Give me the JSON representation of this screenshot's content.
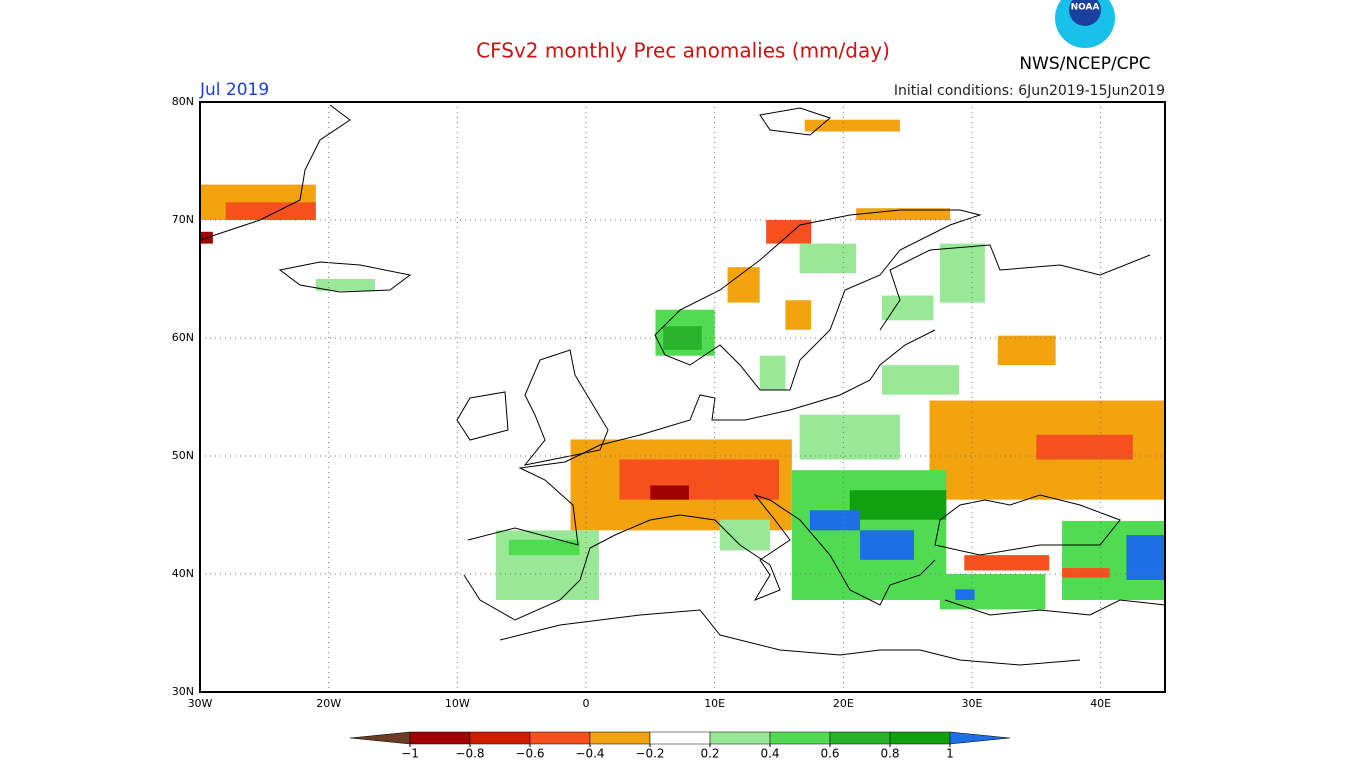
{
  "chart_data": {
    "type": "map",
    "title": "CFSv2 monthly Prec anomalies (mm/day)",
    "period": "Jul 2019",
    "initial_conditions": "Initial conditions: 6Jun2019-15Jun2019",
    "source": "NWS/NCEP/CPC",
    "logo": "NOAA",
    "xlim": [
      -30,
      45
    ],
    "ylim": [
      30,
      80
    ],
    "xticks": [
      {
        "value": -30,
        "label": "30W"
      },
      {
        "value": -20,
        "label": "20W"
      },
      {
        "value": -10,
        "label": "10W"
      },
      0,
      {
        "value": 10,
        "label": "10E"
      },
      {
        "value": 20,
        "label": "20E"
      },
      {
        "value": 30,
        "label": "30E"
      },
      {
        "value": 40,
        "label": "40E"
      }
    ],
    "yticks": [
      {
        "value": 30,
        "label": "30N"
      },
      {
        "value": 40,
        "label": "40N"
      },
      {
        "value": 50,
        "label": "50N"
      },
      {
        "value": 60,
        "label": "60N"
      },
      {
        "value": 70,
        "label": "70N"
      },
      {
        "value": 80,
        "label": "80N"
      }
    ],
    "grid": true,
    "colorbar": {
      "levels": [
        {
          "value": -1,
          "label": "−1"
        },
        {
          "value": -0.8,
          "label": "−0.8"
        },
        {
          "value": -0.6,
          "label": "−0.6"
        },
        {
          "value": -0.4,
          "label": "−0.4"
        },
        {
          "value": -0.2,
          "label": "−0.2"
        },
        0.2,
        0.4,
        0.6,
        0.8,
        1
      ],
      "colors": [
        "#6b3d26",
        "#a00000",
        "#d21e00",
        "#f5501e",
        "#f2a30f",
        "#ffffff",
        "#98e898",
        "#50dc50",
        "#28b428",
        "#10a010",
        "#1e6ee6"
      ]
    },
    "cells": [
      {
        "lon": [
          -30,
          -21
        ],
        "lat": [
          70,
          73
        ],
        "value": -0.3
      },
      {
        "lon": [
          -28,
          -21
        ],
        "lat": [
          70,
          71.5
        ],
        "value": -0.5
      },
      {
        "lon": [
          -30,
          -29
        ],
        "lat": [
          68,
          69
        ],
        "value": -0.9
      },
      {
        "lon": [
          -21,
          -16.4
        ],
        "lat": [
          64,
          65
        ],
        "value": 0.3
      },
      {
        "lon": [
          5.4,
          10
        ],
        "lat": [
          58.5,
          62.4
        ],
        "value": 0.5
      },
      {
        "lon": [
          6,
          9
        ],
        "lat": [
          59,
          61
        ],
        "value": 0.7
      },
      {
        "lon": [
          11,
          13.5
        ],
        "lat": [
          63,
          66
        ],
        "value": -0.3
      },
      {
        "lon": [
          14,
          17.5
        ],
        "lat": [
          68,
          70
        ],
        "value": -0.5
      },
      {
        "lon": [
          15.5,
          17.5
        ],
        "lat": [
          60.7,
          63.2
        ],
        "value": -0.3
      },
      {
        "lon": [
          23,
          27
        ],
        "lat": [
          61.5,
          63.6
        ],
        "value": 0.3
      },
      {
        "lon": [
          27.5,
          31
        ],
        "lat": [
          63,
          68
        ],
        "value": 0.3
      },
      {
        "lon": [
          16.6,
          21
        ],
        "lat": [
          65.5,
          68
        ],
        "value": 0.3
      },
      {
        "lon": [
          13.5,
          15.5
        ],
        "lat": [
          55.6,
          58.5
        ],
        "value": 0.3
      },
      {
        "lon": [
          23,
          29
        ],
        "lat": [
          55.2,
          57.7
        ],
        "value": 0.3
      },
      {
        "lon": [
          32,
          36.5
        ],
        "lat": [
          57.7,
          60.2
        ],
        "value": -0.3
      },
      {
        "lon": [
          26.7,
          45
        ],
        "lat": [
          46.3,
          54.7
        ],
        "value": -0.3
      },
      {
        "lon": [
          35,
          42.5
        ],
        "lat": [
          49.7,
          51.8
        ],
        "value": -0.5
      },
      {
        "lon": [
          -1.2,
          16
        ],
        "lat": [
          43.7,
          51.4
        ],
        "value": -0.3
      },
      {
        "lon": [
          2.6,
          15
        ],
        "lat": [
          46.3,
          49.7
        ],
        "value": -0.5
      },
      {
        "lon": [
          5,
          8
        ],
        "lat": [
          46.3,
          47.5
        ],
        "value": -0.9
      },
      {
        "lon": [
          16.6,
          24.4
        ],
        "lat": [
          49.7,
          53.5
        ],
        "value": 0.3
      },
      {
        "lon": [
          16,
          28
        ],
        "lat": [
          37.8,
          48.8
        ],
        "value": 0.5
      },
      {
        "lon": [
          20.5,
          28
        ],
        "lat": [
          44.6,
          47.1
        ],
        "value": 0.9
      },
      {
        "lon": [
          17.4,
          21.3
        ],
        "lat": [
          43.7,
          45.4
        ],
        "value": 1.1
      },
      {
        "lon": [
          21.3,
          25.5
        ],
        "lat": [
          41.2,
          43.7
        ],
        "value": 1.1
      },
      {
        "lon": [
          -7,
          1
        ],
        "lat": [
          37.8,
          43.7
        ],
        "value": 0.3
      },
      {
        "lon": [
          -6,
          -0.5
        ],
        "lat": [
          41.6,
          42.9
        ],
        "value": 0.5
      },
      {
        "lon": [
          27.5,
          35.7
        ],
        "lat": [
          37,
          40
        ],
        "value": 0.5
      },
      {
        "lon": [
          28.7,
          30.2
        ],
        "lat": [
          37.8,
          38.7
        ],
        "value": 1.1
      },
      {
        "lon": [
          29.4,
          36
        ],
        "lat": [
          40.3,
          41.6
        ],
        "value": -0.5
      },
      {
        "lon": [
          37,
          45
        ],
        "lat": [
          37.8,
          44.5
        ],
        "value": 0.5
      },
      {
        "lon": [
          42,
          45
        ],
        "lat": [
          39.5,
          43.3
        ],
        "value": 1.1
      },
      {
        "lon": [
          37,
          40.7
        ],
        "lat": [
          39.7,
          40.5
        ],
        "value": -0.5
      },
      {
        "lon": [
          10.4,
          14.3
        ],
        "lat": [
          42,
          44.6
        ],
        "value": 0.3
      },
      {
        "lon": [
          17,
          24.4
        ],
        "lat": [
          77.5,
          78.5
        ],
        "value": -0.3
      },
      {
        "lon": [
          21,
          28.3
        ],
        "lat": [
          70,
          71
        ],
        "value": -0.3
      }
    ]
  }
}
